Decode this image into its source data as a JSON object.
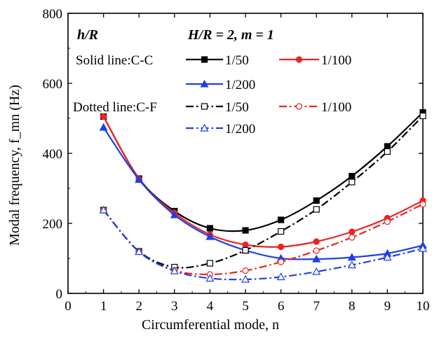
{
  "chart_data": {
    "type": "line",
    "xlabel": "Circumferential mode, n",
    "ylabel": "Modal frequency, f_mn (Hz)",
    "xlim": [
      0,
      10
    ],
    "ylim": [
      0,
      800
    ],
    "xticks": [
      0,
      1,
      2,
      3,
      4,
      5,
      6,
      7,
      8,
      9,
      10
    ],
    "yticks": [
      0,
      200,
      400,
      600,
      800
    ],
    "grid": false,
    "annotations": {
      "hr_title": "h/R",
      "params": "H/R = 2, m = 1",
      "solid_group": "Solid line:C-C",
      "dotted_group": "Dotted line:C-F"
    },
    "legend_position": "top",
    "series": [
      {
        "name": "1/50",
        "group": "C-C",
        "line_style": "solid",
        "marker": "filled-square",
        "color": "#000000",
        "x": [
          1,
          2,
          3,
          4,
          5,
          6,
          7,
          8,
          9,
          10
        ],
        "y": [
          505,
          328,
          235,
          186,
          180,
          210,
          265,
          335,
          420,
          517
        ]
      },
      {
        "name": "1/100",
        "group": "C-C",
        "line_style": "solid",
        "marker": "filled-circle",
        "color": "#ee2222",
        "x": [
          1,
          2,
          3,
          4,
          5,
          6,
          7,
          8,
          9,
          10
        ],
        "y": [
          505,
          327,
          230,
          168,
          139,
          133,
          148,
          176,
          215,
          265
        ]
      },
      {
        "name": "1/200",
        "group": "C-C",
        "line_style": "solid",
        "marker": "filled-triangle",
        "color": "#1f3fe6",
        "x": [
          1,
          2,
          3,
          4,
          5,
          6,
          7,
          8,
          9,
          10
        ],
        "y": [
          474,
          325,
          224,
          162,
          123,
          100,
          98,
          103,
          114,
          137
        ]
      },
      {
        "name": "1/50",
        "group": "C-F",
        "line_style": "dashdot",
        "marker": "open-square",
        "color": "#000000",
        "x": [
          1,
          2,
          3,
          4,
          5,
          6,
          7,
          8,
          9,
          10
        ],
        "y": [
          238,
          120,
          75,
          86,
          123,
          177,
          240,
          318,
          405,
          507
        ]
      },
      {
        "name": "1/100",
        "group": "C-F",
        "line_style": "dashdot",
        "marker": "open-circle",
        "color": "#ee2222",
        "x": [
          1,
          2,
          3,
          4,
          5,
          6,
          7,
          8,
          9,
          10
        ],
        "y": [
          238,
          119,
          66,
          54,
          65,
          90,
          122,
          160,
          205,
          255
        ]
      },
      {
        "name": "1/200",
        "group": "C-F",
        "line_style": "dashdot",
        "marker": "open-triangle",
        "color": "#1f3fe6",
        "x": [
          1,
          2,
          3,
          4,
          5,
          6,
          7,
          8,
          9,
          10
        ],
        "y": [
          238,
          119,
          64,
          43,
          40,
          47,
          62,
          81,
          103,
          128
        ]
      }
    ]
  }
}
